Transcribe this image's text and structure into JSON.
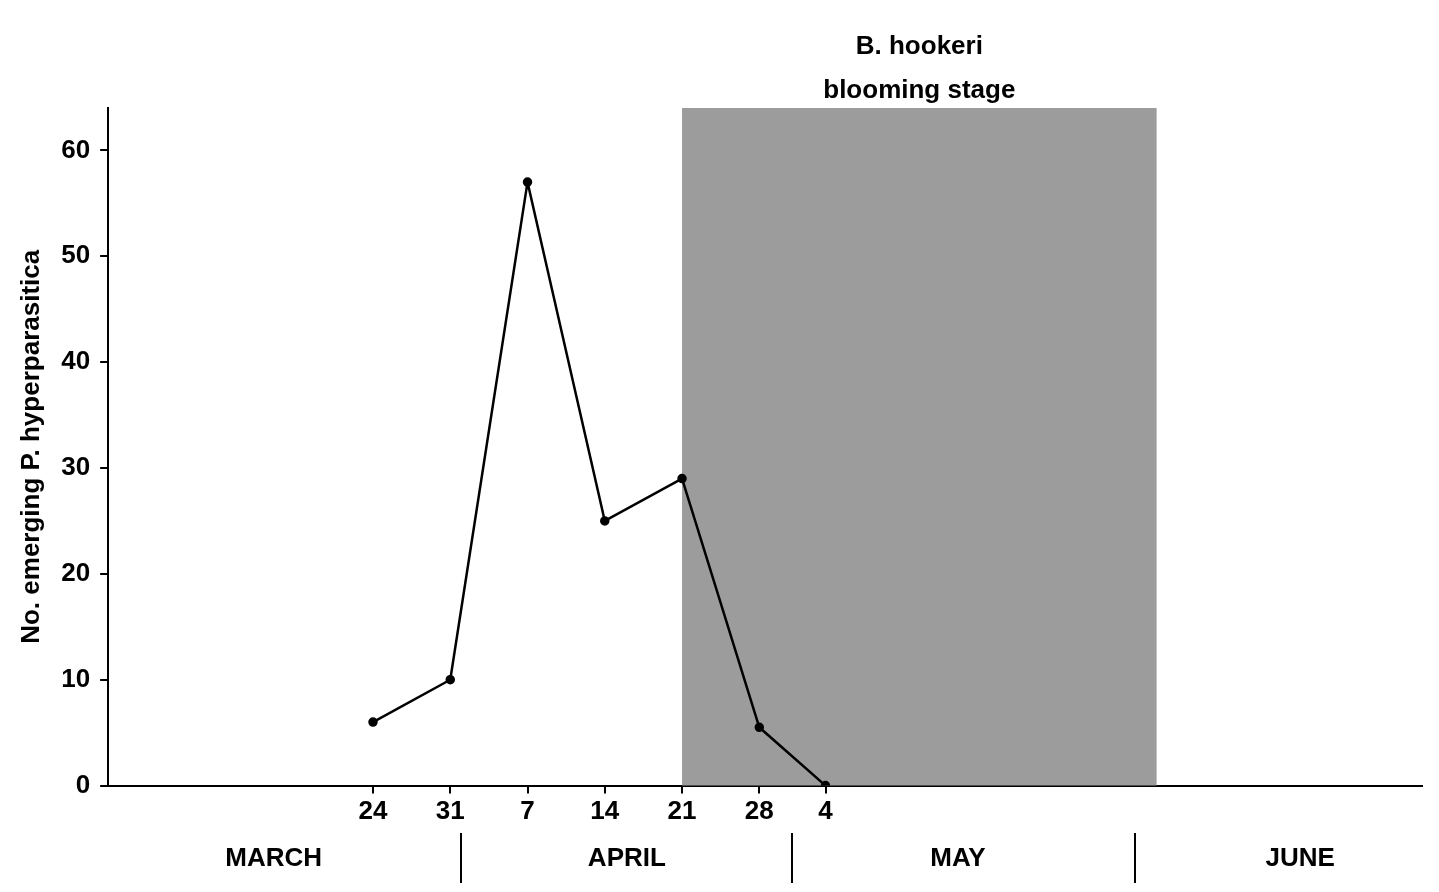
{
  "chart_data": {
    "type": "line",
    "ylabel": "No. emerging P. hyperparasitica",
    "x": [
      "--03-24",
      "--03-31",
      "--04-07",
      "--04-14",
      "--04-21",
      "--04-28",
      "--05-04"
    ],
    "series": [
      {
        "color": "#000000",
        "values": [
          6,
          10,
          57,
          25,
          29,
          5.5,
          0
        ]
      }
    ],
    "xlim": [
      "--02-28",
      "--06-27"
    ],
    "xticks": [
      {
        "value": "--03-24",
        "label": "24"
      },
      {
        "value": "--03-31",
        "label": "31"
      },
      {
        "value": "--04-07",
        "label": "7"
      },
      {
        "value": "--04-14",
        "label": "14"
      },
      {
        "value": "--04-21",
        "label": "21"
      },
      {
        "value": "--04-28",
        "label": "28"
      },
      {
        "value": "--05-04",
        "label": "4"
      }
    ],
    "x2lim": [
      "--02-28",
      "--06-27"
    ],
    "x2ticks": [
      {
        "value": "--03-15",
        "label": "MARCH"
      },
      {
        "value": "--04-16",
        "label": "APRIL"
      },
      {
        "value": "--05-16",
        "label": "MAY"
      },
      {
        "value": "--06-16",
        "label": "JUNE"
      }
    ],
    "ylim": [
      0,
      64
    ],
    "yticks": [
      0,
      10,
      20,
      30,
      40,
      50,
      60
    ],
    "bands": [
      {
        "axis": "x",
        "from": "--04-21",
        "to": "--06-03",
        "label": "B. hookeri\nblooming stage",
        "color": "#9c9c9c"
      }
    ],
    "grid": false,
    "legend": false,
    "marker": "circle",
    "line_style": "solid"
  }
}
